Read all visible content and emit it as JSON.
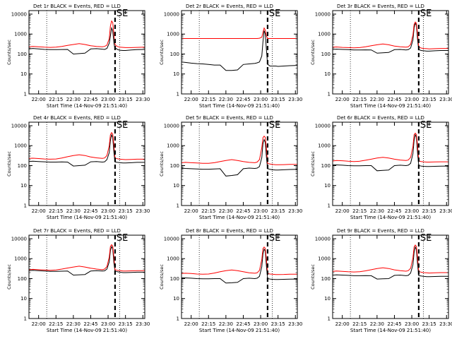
{
  "panel_titles": [
    "Det 1r BLACK = Events, RED = LLD",
    "Det 2r BLACK = Events, RED = LLD",
    "Det 3r BLACK = Events, RED = LLD",
    "Det 4r BLACK = Events, RED = LLD",
    "Det 5r BLACK = Events, RED = LLD",
    "Det 6r BLACK = Events, RED = LLD",
    "Det 7r BLACK = Events, RED = LLD",
    "Det 8r BLACK = Events, RED = LLD",
    "Det 9r BLACK = Events, RED = LLD"
  ],
  "marker_label": "SE",
  "colors": {
    "events": "#000000",
    "lld": "#ff0000",
    "background": "#ffffff"
  },
  "chart_data": {
    "type": "line",
    "layout": "3x3 grid",
    "xlabel": "Start Time (14-Nov-09 21:51:40)",
    "ylabel": "Counts/sec",
    "x_tick_labels": [
      "22:00",
      "22:15",
      "22:30",
      "22:45",
      "23:00",
      "23:15",
      "23:30"
    ],
    "x_ticks": [
      "22:00",
      "22:15",
      "22:30",
      "22:45",
      "23:00",
      "23:15",
      "23:30"
    ],
    "xlim": [
      "21:51:40",
      "23:31:40"
    ],
    "y_scale": "log",
    "ylim": [
      1,
      15000
    ],
    "y_tick_labels": [
      "1",
      "10",
      "100",
      "1000",
      "10000"
    ],
    "y_ticks": [
      1,
      10,
      100,
      1000,
      10000
    ],
    "vertical_dotted_lines": [
      "22:07:00",
      "23:10:00"
    ],
    "vertical_dashed_line": "23:06:00",
    "x": [
      "21:51:40",
      "21:55",
      "22:00",
      "22:05",
      "22:10",
      "22:15",
      "22:20",
      "22:25",
      "22:30",
      "22:35",
      "22:40",
      "22:45",
      "22:50",
      "22:55",
      "22:57",
      "22:59",
      "23:01",
      "23:02",
      "23:03",
      "23:04",
      "23:05",
      "23:06",
      "23:07",
      "23:08",
      "23:10",
      "23:13",
      "23:15",
      "23:20",
      "23:25",
      "23:31:40"
    ],
    "panels": [
      {
        "detector": "1r",
        "series": [
          {
            "name": "Events",
            "color": "#000000",
            "values": [
              180,
              190,
              180,
              170,
              165,
              165,
              168,
              170,
              100,
              105,
              110,
              180,
              185,
              175,
              170,
              190,
              350,
              800,
              2000,
              1500,
              350,
              180,
              190,
              170,
              155,
              150,
              150,
              160,
              165,
              170
            ]
          },
          {
            "name": "LLD",
            "color": "#ff0000",
            "values": [
              230,
              240,
              230,
              220,
              215,
              220,
              240,
              270,
              300,
              330,
              300,
              260,
              240,
              230,
              240,
              280,
              600,
              2500,
              4500,
              3800,
              1000,
              300,
              260,
              240,
              220,
              215,
              210,
              210,
              215,
              220
            ]
          }
        ]
      },
      {
        "detector": "2r",
        "series": [
          {
            "name": "Events",
            "color": "#000000",
            "values": [
              40,
              38,
              35,
              33,
              32,
              30,
              28,
              28,
              15,
              15,
              16,
              30,
              32,
              34,
              36,
              40,
              80,
              400,
              1500,
              1000,
              150,
              30,
              28,
              25,
              25,
              25,
              24,
              25,
              26,
              27
            ]
          },
          {
            "name": "LLD",
            "color": "#ff0000",
            "values": [
              600,
              600,
              600,
              600,
              600,
              600,
              600,
              600,
              600,
              600,
              600,
              600,
              600,
              600,
              600,
              620,
              700,
              1200,
              2000,
              1600,
              800,
              600,
              600,
              600,
              600,
              600,
              600,
              600,
              600,
              600
            ]
          }
        ]
      },
      {
        "detector": "3r",
        "series": [
          {
            "name": "Events",
            "color": "#000000",
            "values": [
              170,
              175,
              170,
              165,
              160,
              160,
              162,
              160,
              110,
              115,
              120,
              165,
              170,
              160,
              165,
              200,
              500,
              2000,
              3500,
              2800,
              500,
              160,
              160,
              150,
              145,
              140,
              140,
              145,
              150,
              150
            ]
          },
          {
            "name": "LLD",
            "color": "#ff0000",
            "values": [
              220,
              225,
              215,
              210,
              205,
              210,
              230,
              260,
              290,
              320,
              290,
              250,
              230,
              220,
              230,
              300,
              900,
              3000,
              4000,
              3500,
              1000,
              220,
              210,
              200,
              190,
              185,
              180,
              185,
              190,
              190
            ]
          }
        ]
      },
      {
        "detector": "4r",
        "series": [
          {
            "name": "Events",
            "color": "#000000",
            "values": [
              160,
              165,
              160,
              155,
              150,
              150,
              152,
              150,
              95,
              100,
              105,
              155,
              160,
              150,
              155,
              200,
              450,
              1800,
              3500,
              2600,
              450,
              150,
              150,
              145,
              140,
              135,
              135,
              140,
              145,
              145
            ]
          },
          {
            "name": "LLD",
            "color": "#ff0000",
            "values": [
              230,
              235,
              225,
              215,
              210,
              215,
              240,
              280,
              320,
              350,
              320,
              270,
              245,
              230,
              240,
              320,
              1000,
              3500,
              4500,
              3800,
              1100,
              240,
              230,
              220,
              210,
              205,
              200,
              205,
              210,
              210
            ]
          }
        ]
      },
      {
        "detector": "5r",
        "series": [
          {
            "name": "Events",
            "color": "#000000",
            "values": [
              75,
              72,
              70,
              68,
              66,
              66,
              68,
              70,
              30,
              32,
              35,
              70,
              75,
              72,
              75,
              90,
              250,
              1200,
              2000,
              1500,
              250,
              70,
              68,
              65,
              62,
              60,
              60,
              62,
              64,
              65
            ]
          },
          {
            "name": "LLD",
            "color": "#ff0000",
            "values": [
              140,
              145,
              140,
              135,
              130,
              130,
              140,
              160,
              180,
              200,
              180,
              160,
              145,
              140,
              150,
              200,
              800,
              2500,
              3000,
              2600,
              700,
              130,
              125,
              120,
              115,
              110,
              110,
              112,
              115,
              115
            ]
          }
        ]
      },
      {
        "detector": "6r",
        "series": [
          {
            "name": "Events",
            "color": "#000000",
            "values": [
              110,
              108,
              105,
              100,
              98,
              98,
              100,
              100,
              55,
              58,
              60,
              100,
              105,
              100,
              105,
              130,
              400,
              1800,
              3500,
              2700,
              400,
              100,
              98,
              95,
              92,
              90,
              90,
              92,
              94,
              95
            ]
          },
          {
            "name": "LLD",
            "color": "#ff0000",
            "values": [
              170,
              180,
              175,
              165,
              160,
              165,
              185,
              210,
              240,
              260,
              240,
              210,
              190,
              180,
              190,
              260,
              900,
              3500,
              4200,
              3600,
              1000,
              170,
              165,
              160,
              155,
              150,
              150,
              152,
              155,
              155
            ]
          }
        ]
      },
      {
        "detector": "7r",
        "series": [
          {
            "name": "Events",
            "color": "#000000",
            "values": [
              250,
              260,
              250,
              240,
              230,
              230,
              235,
              240,
              150,
              155,
              160,
              240,
              250,
              240,
              245,
              300,
              700,
              2500,
              4000,
              3200,
              600,
              240,
              230,
              220,
              210,
              200,
              200,
              205,
              210,
              210
            ]
          },
          {
            "name": "LLD",
            "color": "#ff0000",
            "values": [
              280,
              290,
              280,
              270,
              260,
              270,
              300,
              340,
              380,
              420,
              380,
              330,
              300,
              280,
              300,
              400,
              1200,
              4000,
              5000,
              4300,
              1200,
              280,
              270,
              260,
              250,
              240,
              240,
              245,
              250,
              250
            ]
          }
        ]
      },
      {
        "detector": "8r",
        "series": [
          {
            "name": "Events",
            "color": "#000000",
            "values": [
              110,
              108,
              105,
              100,
              98,
              98,
              100,
              100,
              60,
              62,
              65,
              100,
              105,
              100,
              105,
              130,
              400,
              1700,
              3000,
              2400,
              400,
              100,
              98,
              95,
              92,
              90,
              90,
              92,
              94,
              95
            ]
          },
          {
            "name": "LLD",
            "color": "#ff0000",
            "values": [
              180,
              185,
              180,
              170,
              165,
              170,
              190,
              220,
              250,
              270,
              250,
              220,
              195,
              185,
              195,
              260,
              900,
              3200,
              3800,
              3300,
              900,
              180,
              175,
              170,
              165,
              160,
              160,
              162,
              165,
              165
            ]
          }
        ]
      },
      {
        "detector": "9r",
        "series": [
          {
            "name": "Events",
            "color": "#000000",
            "values": [
              150,
              155,
              150,
              145,
              140,
              140,
              142,
              140,
              95,
              98,
              100,
              145,
              150,
              140,
              145,
              190,
              500,
              2000,
              3800,
              2900,
              500,
              140,
              138,
              135,
              130,
              125,
              125,
              128,
              130,
              130
            ]
          },
          {
            "name": "LLD",
            "color": "#ff0000",
            "values": [
              230,
              240,
              230,
              220,
              215,
              220,
              245,
              280,
              320,
              350,
              320,
              275,
              250,
              235,
              250,
              330,
              1100,
              3800,
              4800,
              4100,
              1100,
              230,
              220,
              210,
              200,
              195,
              190,
              195,
              200,
              200
            ]
          }
        ]
      }
    ]
  }
}
